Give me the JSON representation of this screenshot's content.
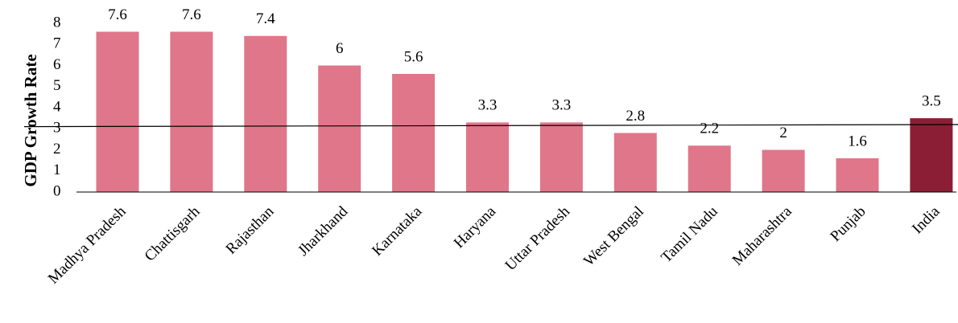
{
  "chart_data": {
    "type": "bar",
    "y_label": "GDP Growth Rate",
    "categories": [
      "Madhya Pradesh",
      "Chattisgarh",
      "Rajasthan",
      "Jharkhand",
      "Karnataka",
      "Haryana",
      "Uttar Pradesh",
      "West Bengal",
      "Tamil Nadu",
      "Maharashtra",
      "Punjab",
      "India"
    ],
    "values": [
      7.6,
      7.6,
      7.4,
      6,
      5.6,
      3.3,
      3.3,
      2.8,
      2.2,
      2,
      1.6,
      3.5
    ],
    "colors": [
      "#e07689",
      "#e07689",
      "#e07689",
      "#e07689",
      "#e07689",
      "#e07689",
      "#e07689",
      "#e07689",
      "#e07689",
      "#e07689",
      "#e07689",
      "#8b1e35"
    ],
    "reference_line": [
      3.1,
      3.2
    ],
    "ylim": [
      0,
      8
    ],
    "yticks": [
      0,
      1,
      2,
      3,
      4,
      5,
      6,
      7,
      8
    ]
  }
}
